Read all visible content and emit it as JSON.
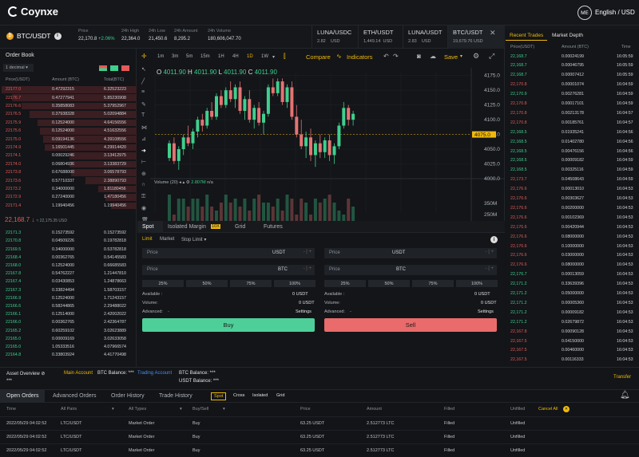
{
  "header": {
    "brand": "Coynxe",
    "avatar": "ME",
    "lang": "English / USD"
  },
  "ticker": {
    "pair": "BTC/USDT",
    "price_label": "Price",
    "price": "22,170.8",
    "change": "+2.06%",
    "high_label": "24h High",
    "high": "22,364.0",
    "low_label": "24h Low",
    "low": "21,450.6",
    "amount_label": "24h Amount",
    "amount": "8,295.2",
    "volume_label": "24h Volume",
    "volume": "180,606,047.70"
  },
  "markets": [
    {
      "name": "LUNA/USDC",
      "price": "2.82",
      "unit": "USD"
    },
    {
      "name": "ETH/USDT",
      "price": "1,449.14",
      "unit": "USD"
    },
    {
      "name": "LUNA/USDT",
      "price": "2.83",
      "unit": "USD"
    },
    {
      "name": "BTC/USDT",
      "price": "19,679.76",
      "unit": "USD"
    }
  ],
  "orderbook": {
    "title": "Order Book",
    "decimal": "1 decimal",
    "headers": [
      "Price(USDT)",
      "Amount (BTC)",
      "Total(BTC)"
    ],
    "asks": [
      [
        "22177.0",
        "0.47292315",
        "6.32523223"
      ],
      [
        "22176.7",
        "0.47277941",
        "5.85230908"
      ],
      [
        "22176.6",
        "0.35858083",
        "5.37952967"
      ],
      [
        "22176.5",
        "0.37938328",
        "5.02094884"
      ],
      [
        "22175.9",
        "0.12524000",
        "4.64156556"
      ],
      [
        "22175.6",
        "0.12524000",
        "4.51632556"
      ],
      [
        "22175.0",
        "0.09194136",
        "4.39108556"
      ],
      [
        "22174.9",
        "1.16501445",
        "4.29914420"
      ],
      [
        "22174.1",
        "0.00029246",
        "3.13412975"
      ],
      [
        "22174.0",
        "0.06804936",
        "3.13383729"
      ],
      [
        "22173.8",
        "0.67688000",
        "3.06578793"
      ],
      [
        "22173.6",
        "0.57710337",
        "2.38890793"
      ],
      [
        "22173.2",
        "0.34000000",
        "1.81180456"
      ],
      [
        "22172.9",
        "0.27240000",
        "1.47180456"
      ],
      [
        "22171.4",
        "1.19940456",
        "1.19940456"
      ]
    ],
    "mid": "22,168.7",
    "mid_sub": "≈ 22,175.35 USD",
    "bids": [
      [
        "22171.3",
        "0.15273592",
        "0.15273592"
      ],
      [
        "22170.8",
        "0.04509226",
        "0.19782818"
      ],
      [
        "22169.5",
        "0.34000000",
        "0.53782818"
      ],
      [
        "22168.4",
        "0.00362765",
        "0.54145583"
      ],
      [
        "22168.0",
        "0.12524000",
        "0.66685583"
      ],
      [
        "22167.8",
        "0.54762227",
        "1.21447810"
      ],
      [
        "22167.4",
        "0.03430853",
        "1.24878663"
      ],
      [
        "22167.3",
        "0.33824494",
        "1.58703157"
      ],
      [
        "22166.9",
        "0.12524000",
        "1.71243157"
      ],
      [
        "22166.6",
        "0.58244865",
        "2.29488022"
      ],
      [
        "22166.1",
        "0.12514000",
        "2.42002022"
      ],
      [
        "22166.0",
        "0.00362765",
        "2.42364787"
      ],
      [
        "22165.2",
        "0.60259102",
        "3.02623889"
      ],
      [
        "22165.0",
        "0.00009169",
        "3.02633058"
      ],
      [
        "22165.0",
        "1.05333516",
        "4.07966574"
      ],
      [
        "22164.8",
        "0.33803924",
        "4.41770498"
      ]
    ]
  },
  "chart_toolbar": {
    "intervals": [
      "1m",
      "3m",
      "5m",
      "15m",
      "1H",
      "4H",
      "1D",
      "1W"
    ],
    "active": "1D",
    "compare": "Compare",
    "indicators": "Indicators",
    "save": "Save"
  },
  "chart_data": {
    "type": "candlestick",
    "ohlc_label": {
      "o": "O",
      "ov": "4011.90",
      "h": "H",
      "hv": "4011.90",
      "l": "L",
      "lv": "4011.90",
      "c": "C",
      "cv": "4011.90"
    },
    "yticks": [
      "4175.0",
      "4150.0",
      "4125.0",
      "4100.0",
      "4075.0",
      "4050.0",
      "4025.0",
      "4000.0"
    ],
    "last_price": "4075.0",
    "vol_label": "Volume (20)",
    "vol_value": "2.807M",
    "vol_na": "n/a",
    "vol_ticks": [
      "350M",
      "250M"
    ],
    "candles": [
      [
        4035,
        4065,
        4030,
        4060
      ],
      [
        4060,
        4070,
        4025,
        4030
      ],
      [
        4030,
        4055,
        4015,
        4050
      ],
      [
        4050,
        4075,
        4040,
        4070
      ],
      [
        4070,
        4090,
        4055,
        4060
      ],
      [
        4060,
        4085,
        4050,
        4080
      ],
      [
        4080,
        4105,
        4070,
        4100
      ],
      [
        4100,
        4110,
        4080,
        4090
      ],
      [
        4090,
        4120,
        4085,
        4115
      ],
      [
        4115,
        4130,
        4100,
        4105
      ],
      [
        4105,
        4145,
        4100,
        4140
      ],
      [
        4140,
        4150,
        4120,
        4125
      ],
      [
        4125,
        4155,
        4120,
        4150
      ],
      [
        4150,
        4165,
        4130,
        4135
      ],
      [
        4135,
        4160,
        4120,
        4155
      ],
      [
        4155,
        4165,
        4110,
        4115
      ],
      [
        4115,
        4140,
        4100,
        4135
      ],
      [
        4135,
        4150,
        4095,
        4100
      ],
      [
        4100,
        4125,
        4085,
        4120
      ],
      [
        4120,
        4130,
        4090,
        4095
      ],
      [
        4095,
        4115,
        4075,
        4110
      ],
      [
        4110,
        4160,
        4105,
        4155
      ],
      [
        4155,
        4170,
        4140,
        4145
      ],
      [
        4145,
        4170,
        4140,
        4165
      ],
      [
        4165,
        4170,
        4125,
        4130
      ],
      [
        4130,
        4160,
        4120,
        4155
      ],
      [
        4155,
        4165,
        4100,
        4105
      ],
      [
        4105,
        4125,
        4070,
        4075
      ],
      [
        4075,
        4100,
        4050,
        4055
      ],
      [
        4055,
        4080,
        4035,
        4070
      ],
      [
        4070,
        4085,
        4030,
        4040
      ],
      [
        4040,
        4065,
        4020,
        4060
      ],
      [
        4060,
        4075,
        4035,
        4045
      ],
      [
        4045,
        4070,
        4035,
        4065
      ],
      [
        4065,
        4075,
        4030,
        4040
      ],
      [
        4040,
        4060,
        4025,
        4055
      ],
      [
        4055,
        4095,
        4050,
        4090
      ],
      [
        4090,
        4130,
        4085,
        4120
      ],
      [
        4120,
        4125,
        4090,
        4100
      ],
      [
        4100,
        4115,
        4090,
        4110
      ]
    ]
  },
  "form": {
    "tabs": [
      "Spot",
      "Isolated Margin",
      "10X",
      "Grid",
      "Futures"
    ],
    "types": [
      "Limit",
      "Market",
      "Stop Limit"
    ],
    "price": "Price",
    "currency_usdt": "USDT",
    "currency_btc": "BTC",
    "pcts": [
      "25%",
      "50%",
      "75%",
      "100%"
    ],
    "available": "Available :",
    "avail_val": "0 USDT",
    "volume": "Volume:",
    "vol_val": "0 USDT",
    "advanced": "Advanced:",
    "adv_val": "-",
    "settings": "Settings",
    "buy": "Buy",
    "sell": "Sell"
  },
  "trades": {
    "tabs": [
      "Recent Trades",
      "Market Depth"
    ],
    "headers": [
      "Price(USDT)",
      "Amount (BTC)",
      "Time"
    ],
    "rows": [
      [
        "22,168.7",
        "0.00024199",
        "16:05:59",
        "g"
      ],
      [
        "22,168.7",
        "0.00046795",
        "16:05:59",
        "g"
      ],
      [
        "22,168.7",
        "0.00007412",
        "16:05:59",
        "g"
      ],
      [
        "22,170.8",
        "0.00001074",
        "16:04:59",
        "r"
      ],
      [
        "22,170.9",
        "0.00276281",
        "16:04:59",
        "g"
      ],
      [
        "22,170.8",
        "0.00017101",
        "16:04:59",
        "r"
      ],
      [
        "22,170.8",
        "0.00213178",
        "16:04:57",
        "r"
      ],
      [
        "22,170.8",
        "0.00185761",
        "16:04:57",
        "r"
      ],
      [
        "22,168.5",
        "0.01935241",
        "16:04:56",
        "g"
      ],
      [
        "22,168.5",
        "0.01402780",
        "16:04:56",
        "g"
      ],
      [
        "22,168.5",
        "0.00476156",
        "16:04:56",
        "g"
      ],
      [
        "22,168.5",
        "0.00009182",
        "16:04:59",
        "g"
      ],
      [
        "22,168.5",
        "0.00325116",
        "16:04:59",
        "g"
      ],
      [
        "22,173.7",
        "0.04508643",
        "16:04:59",
        "r"
      ],
      [
        "22,176.6",
        "0.00013010",
        "16:04:53",
        "r"
      ],
      [
        "22,176.6",
        "0.00303627",
        "16:04:53",
        "r"
      ],
      [
        "22,176.6",
        "0.00200000",
        "16:04:53",
        "r"
      ],
      [
        "22,176.6",
        "0.00102369",
        "16:04:53",
        "r"
      ],
      [
        "22,176.6",
        "0.00420944",
        "16:04:53",
        "r"
      ],
      [
        "22,176.6",
        "0.08000000",
        "16:04:53",
        "r"
      ],
      [
        "22,176.6",
        "0.10000000",
        "16:04:53",
        "r"
      ],
      [
        "22,176.6",
        "0.03000000",
        "16:04:53",
        "r"
      ],
      [
        "22,176.6",
        "0.08000000",
        "16:04:53",
        "r"
      ],
      [
        "22,176.7",
        "0.00013059",
        "16:04:53",
        "g"
      ],
      [
        "22,171.2",
        "0.33639396",
        "16:04:53",
        "g"
      ],
      [
        "22,171.2",
        "0.05000000",
        "16:04:53",
        "g"
      ],
      [
        "22,171.2",
        "0.00005360",
        "16:04:53",
        "g"
      ],
      [
        "22,171.2",
        "0.00009182",
        "16:04:53",
        "g"
      ],
      [
        "22,171.2",
        "0.02679872",
        "16:04:53",
        "g"
      ],
      [
        "22,167.8",
        "0.00090128",
        "16:04:53",
        "r"
      ],
      [
        "22,167.5",
        "0.04150000",
        "16:04:53",
        "r"
      ],
      [
        "22,167.5",
        "0.00460000",
        "16:04:53",
        "r"
      ],
      [
        "22,167.5",
        "0.00116333",
        "16:04:53",
        "r"
      ]
    ]
  },
  "assets": {
    "title": "Asset Overview",
    "main": "Main Account",
    "btc1": "BTC Balance: ***",
    "trading": "Trading Account",
    "btc2": "BTC Balance: ***",
    "star1": "***",
    "usdt": "USDT Balance: ***",
    "transfer": "Transfer"
  },
  "orders": {
    "tabs": [
      "Open Orders",
      "Advanced Orders",
      "Order History",
      "Trade History"
    ],
    "filters": [
      "Spot",
      "Cross",
      "Isolated",
      "Grid"
    ],
    "headers": [
      "Time",
      "All Pairs",
      "All Types",
      "Buy/Sell",
      "Price",
      "Amount",
      "Filled",
      "Unfilled",
      "Cancel All"
    ],
    "rows": [
      [
        "2022/05/29 04:02:52",
        "LTC/USDT",
        "Market Order",
        "Buy",
        "63.25 USDT",
        "2.512773 LTC",
        "Filled",
        "Unfilled"
      ],
      [
        "2022/05/29 04:02:52",
        "LTC/USDT",
        "Market Order",
        "Buy",
        "63.25 USDT",
        "2.512773 LTC",
        "Filled",
        "Unfilled"
      ],
      [
        "2022/05/29 04:02:52",
        "LTC/USDT",
        "Market Order",
        "Buy",
        "63.25 USDT",
        "2.512773 LTC",
        "Filled",
        "Unfilled"
      ]
    ]
  }
}
